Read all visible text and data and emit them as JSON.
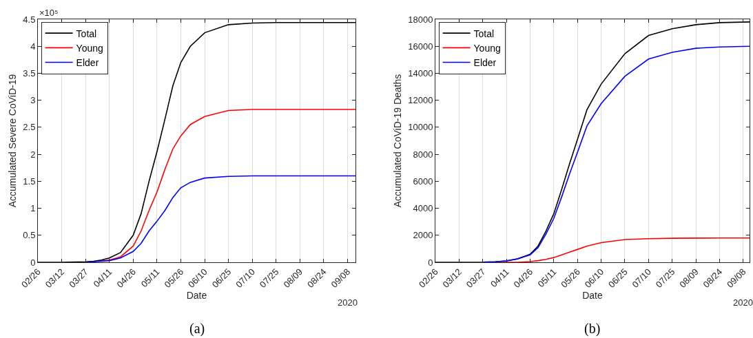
{
  "chart_data": [
    {
      "type": "line",
      "xlabel": "Date",
      "ylabel": "Accumulated Severe CoViD-19",
      "x": [
        "2020-02-26",
        "2020-03-12",
        "2020-03-27",
        "2020-04-01",
        "2020-04-06",
        "2020-04-11",
        "2020-04-18",
        "2020-04-26",
        "2020-05-01",
        "2020-05-06",
        "2020-05-11",
        "2020-05-16",
        "2020-05-21",
        "2020-05-26",
        "2020-06-01",
        "2020-06-10",
        "2020-06-25",
        "2020-07-10",
        "2020-07-25",
        "2020-08-09",
        "2020-08-24",
        "2020-09-13"
      ],
      "series": [
        {
          "name": "Total",
          "color": "#000000",
          "values": [
            0,
            0,
            0.01,
            0.02,
            0.04,
            0.08,
            0.18,
            0.5,
            0.9,
            1.5,
            2.05,
            2.65,
            3.27,
            3.7,
            4.0,
            4.25,
            4.4,
            4.43,
            4.44,
            4.44,
            4.44,
            4.44
          ]
        },
        {
          "name": "Young",
          "color": "#ff0000",
          "values": [
            null,
            null,
            null,
            null,
            0.02,
            0.04,
            0.1,
            0.3,
            0.58,
            0.96,
            1.3,
            1.72,
            2.1,
            2.34,
            2.55,
            2.7,
            2.81,
            2.83,
            2.83,
            2.83,
            2.83,
            2.83
          ]
        },
        {
          "name": "Elder",
          "color": "#0000ff",
          "values": [
            null,
            null,
            0,
            0.01,
            0.02,
            0.03,
            0.08,
            0.2,
            0.35,
            0.58,
            0.76,
            0.96,
            1.2,
            1.38,
            1.48,
            1.56,
            1.59,
            1.6,
            1.6,
            1.6,
            1.6,
            1.6
          ]
        }
      ],
      "xlim": [
        "2020-02-26",
        "2020-09-13"
      ],
      "xticks": [
        {
          "value": "2020-02-26",
          "label": "02/26"
        },
        {
          "value": "2020-03-12",
          "label": "03/12"
        },
        {
          "value": "2020-03-27",
          "label": "03/27"
        },
        {
          "value": "2020-04-11",
          "label": "04/11"
        },
        {
          "value": "2020-04-26",
          "label": "04/26"
        },
        {
          "value": "2020-05-11",
          "label": "05/11"
        },
        {
          "value": "2020-05-26",
          "label": "05/26"
        },
        {
          "value": "2020-06-10",
          "label": "06/10"
        },
        {
          "value": "2020-06-25",
          "label": "06/25"
        },
        {
          "value": "2020-07-10",
          "label": "07/10"
        },
        {
          "value": "2020-07-25",
          "label": "07/25"
        },
        {
          "value": "2020-08-09",
          "label": "08/09"
        },
        {
          "value": "2020-08-24",
          "label": "08/24"
        },
        {
          "value": "2020-09-08",
          "label": "09/08"
        }
      ],
      "ylim": [
        0,
        4.5
      ],
      "yticks": [
        0,
        0.5,
        1,
        1.5,
        2,
        2.5,
        3,
        3.5,
        4,
        4.5
      ],
      "grid": "x",
      "legend": "top left",
      "annotations": [
        "×10⁵",
        "2020",
        "(a)"
      ]
    },
    {
      "type": "line",
      "xlabel": "Date",
      "ylabel": "Accumulated CoViD-19 Deaths",
      "x": [
        "2020-02-26",
        "2020-03-12",
        "2020-03-27",
        "2020-04-04",
        "2020-04-11",
        "2020-04-18",
        "2020-04-26",
        "2020-05-01",
        "2020-05-06",
        "2020-05-11",
        "2020-05-16",
        "2020-05-21",
        "2020-05-26",
        "2020-06-01",
        "2020-06-10",
        "2020-06-25",
        "2020-07-10",
        "2020-07-25",
        "2020-08-09",
        "2020-08-24",
        "2020-09-12"
      ],
      "series": [
        {
          "name": "Total",
          "color": "#000000",
          "values": [
            0,
            0,
            10,
            40,
            100,
            250,
            600,
            1200,
            2300,
            3600,
            5400,
            7300,
            9100,
            11300,
            13200,
            15450,
            16800,
            17300,
            17600,
            17750,
            17800
          ]
        },
        {
          "name": "Young",
          "color": "#ff0000",
          "values": [
            null,
            null,
            null,
            0,
            0,
            0,
            50,
            120,
            220,
            350,
            550,
            750,
            950,
            1200,
            1450,
            1680,
            1750,
            1780,
            1790,
            1800,
            1800
          ]
        },
        {
          "name": "Elder",
          "color": "#0000ff",
          "values": [
            null,
            null,
            10,
            40,
            100,
            250,
            550,
            1080,
            2080,
            3250,
            4850,
            6550,
            8150,
            10100,
            11750,
            13770,
            15050,
            15550,
            15850,
            15950,
            16000
          ]
        }
      ],
      "xlim": [
        "2020-02-26",
        "2020-09-12"
      ],
      "xticks": [
        {
          "value": "2020-02-26",
          "label": "02/26"
        },
        {
          "value": "2020-03-12",
          "label": "03/12"
        },
        {
          "value": "2020-03-27",
          "label": "03/27"
        },
        {
          "value": "2020-04-11",
          "label": "04/11"
        },
        {
          "value": "2020-04-26",
          "label": "04/26"
        },
        {
          "value": "2020-05-11",
          "label": "05/11"
        },
        {
          "value": "2020-05-26",
          "label": "05/26"
        },
        {
          "value": "2020-06-10",
          "label": "06/10"
        },
        {
          "value": "2020-06-25",
          "label": "06/25"
        },
        {
          "value": "2020-07-10",
          "label": "07/10"
        },
        {
          "value": "2020-07-25",
          "label": "07/25"
        },
        {
          "value": "2020-08-09",
          "label": "08/09"
        },
        {
          "value": "2020-08-24",
          "label": "08/24"
        },
        {
          "value": "2020-09-08",
          "label": "09/08"
        }
      ],
      "ylim": [
        0,
        18000
      ],
      "yticks": [
        0,
        2000,
        4000,
        6000,
        8000,
        10000,
        12000,
        14000,
        16000,
        18000
      ],
      "grid": "x",
      "legend": "top left",
      "annotations": [
        "2020",
        "(b)"
      ]
    }
  ]
}
